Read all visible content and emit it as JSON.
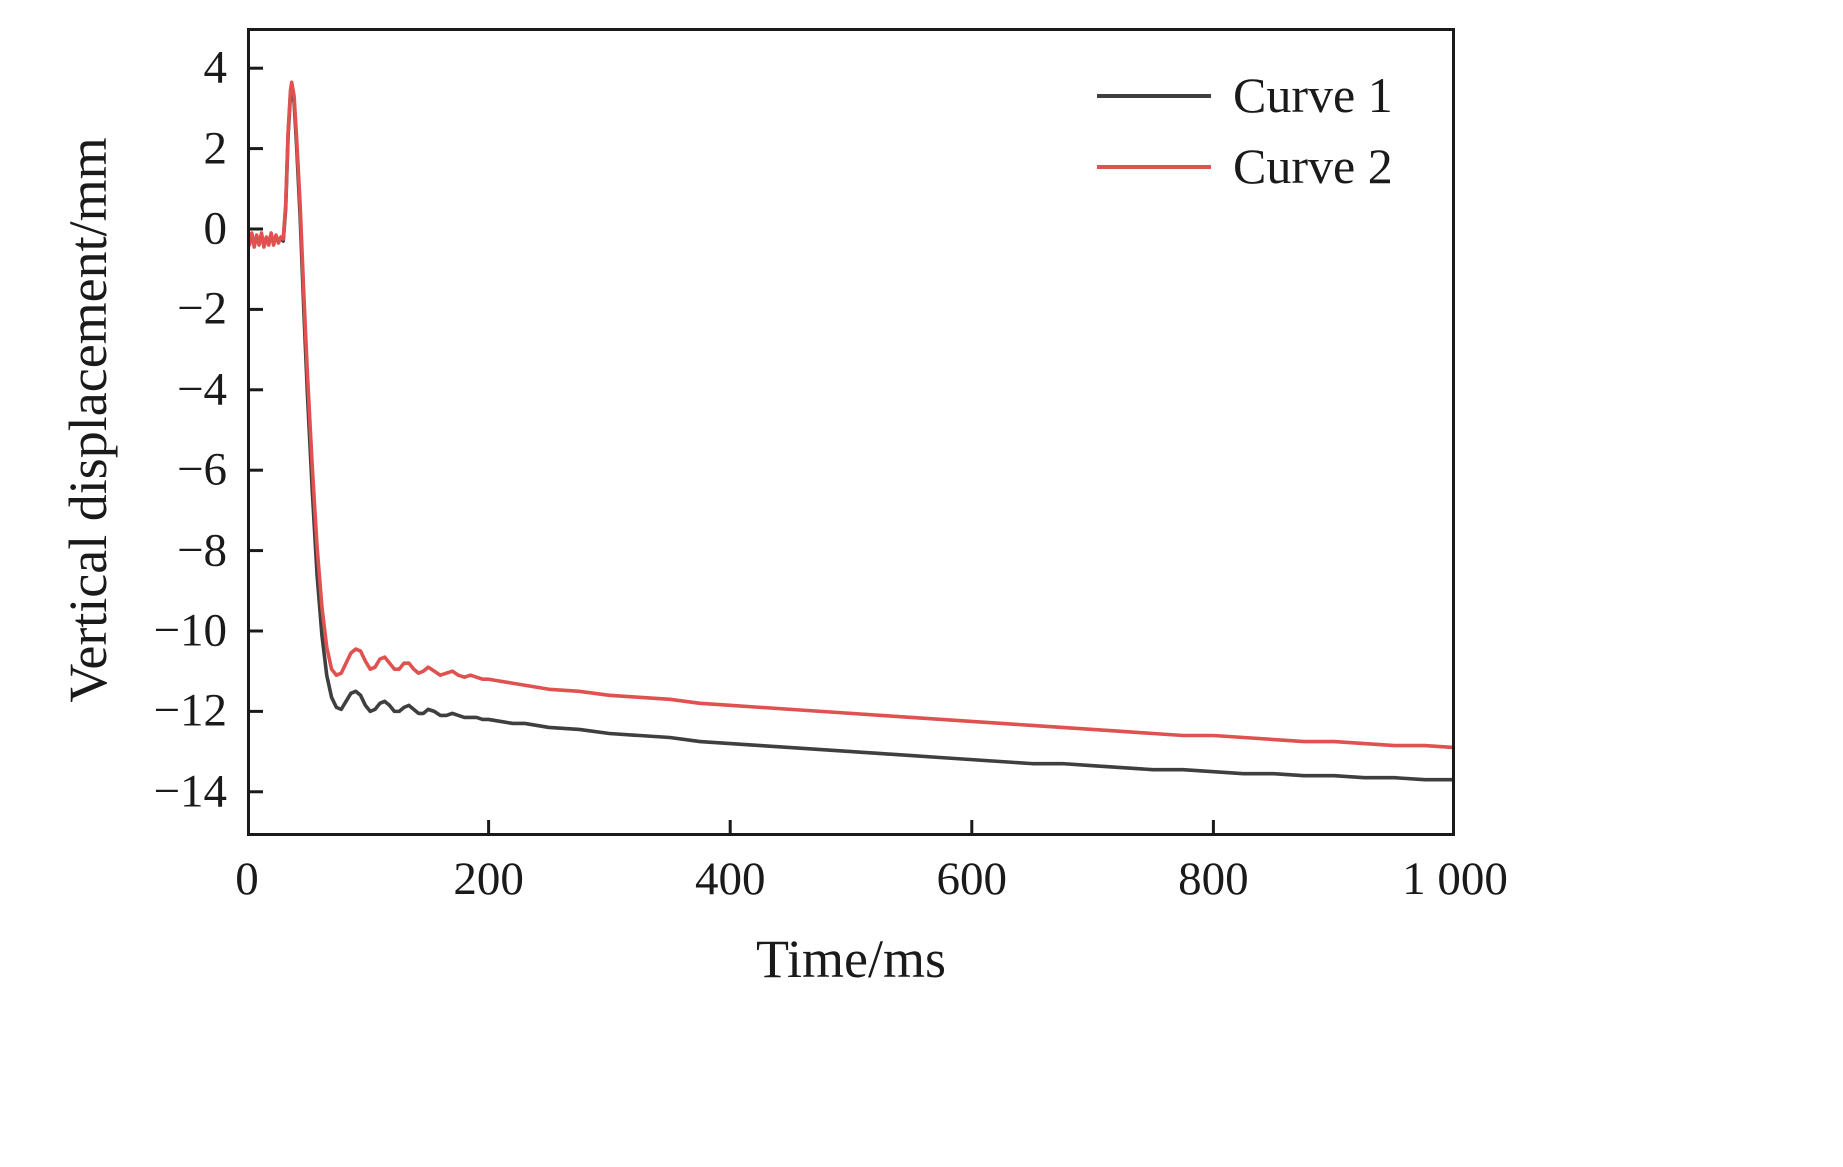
{
  "chart_data": {
    "type": "line",
    "title": "",
    "xlabel": "Time/ms",
    "ylabel": "Vertical displacement/mm",
    "xlim": [
      0,
      1000
    ],
    "ylim": [
      -15.1,
      5.0
    ],
    "grid": false,
    "legend_position": "top-right",
    "frame_color": "#1a1a1a",
    "x_ticks": [
      {
        "value": 0,
        "label": "0"
      },
      {
        "value": 200,
        "label": "200"
      },
      {
        "value": 400,
        "label": "400"
      },
      {
        "value": 600,
        "label": "600"
      },
      {
        "value": 800,
        "label": "800"
      },
      {
        "value": 1000,
        "label": "1 000"
      }
    ],
    "y_ticks": [
      {
        "value": 4,
        "label": "4"
      },
      {
        "value": 2,
        "label": "2"
      },
      {
        "value": 0,
        "label": "0"
      },
      {
        "value": -2,
        "label": "−2"
      },
      {
        "value": -4,
        "label": "−4"
      },
      {
        "value": -6,
        "label": "−6"
      },
      {
        "value": -8,
        "label": "−8"
      },
      {
        "value": -10,
        "label": "−10"
      },
      {
        "value": -12,
        "label": "−12"
      },
      {
        "value": -14,
        "label": "−14"
      }
    ],
    "series": [
      {
        "name": "Curve 1",
        "color": "#3f3f3f",
        "points": [
          [
            0,
            -0.2
          ],
          [
            2,
            -0.35
          ],
          [
            4,
            -0.15
          ],
          [
            6,
            -0.4
          ],
          [
            8,
            -0.2
          ],
          [
            10,
            -0.35
          ],
          [
            12,
            -0.15
          ],
          [
            14,
            -0.4
          ],
          [
            16,
            -0.25
          ],
          [
            18,
            -0.35
          ],
          [
            20,
            -0.15
          ],
          [
            22,
            -0.35
          ],
          [
            24,
            -0.2
          ],
          [
            26,
            -0.3
          ],
          [
            28,
            -0.25
          ],
          [
            30,
            -0.3
          ],
          [
            32,
            0.5
          ],
          [
            34,
            2.3
          ],
          [
            36,
            3.35
          ],
          [
            37,
            3.5
          ],
          [
            39,
            3.15
          ],
          [
            41,
            2.1
          ],
          [
            44,
            0.3
          ],
          [
            47,
            -2.0
          ],
          [
            50,
            -4.1
          ],
          [
            54,
            -6.5
          ],
          [
            58,
            -8.6
          ],
          [
            62,
            -10.1
          ],
          [
            66,
            -11.1
          ],
          [
            70,
            -11.65
          ],
          [
            74,
            -11.9
          ],
          [
            78,
            -11.95
          ],
          [
            82,
            -11.75
          ],
          [
            86,
            -11.55
          ],
          [
            90,
            -11.5
          ],
          [
            94,
            -11.6
          ],
          [
            98,
            -11.85
          ],
          [
            102,
            -12.0
          ],
          [
            106,
            -11.95
          ],
          [
            110,
            -11.8
          ],
          [
            114,
            -11.75
          ],
          [
            118,
            -11.85
          ],
          [
            122,
            -12.0
          ],
          [
            126,
            -12.0
          ],
          [
            130,
            -11.9
          ],
          [
            134,
            -11.85
          ],
          [
            138,
            -11.95
          ],
          [
            142,
            -12.05
          ],
          [
            146,
            -12.05
          ],
          [
            150,
            -11.95
          ],
          [
            155,
            -12.0
          ],
          [
            160,
            -12.1
          ],
          [
            165,
            -12.1
          ],
          [
            170,
            -12.05
          ],
          [
            175,
            -12.1
          ],
          [
            180,
            -12.15
          ],
          [
            185,
            -12.15
          ],
          [
            190,
            -12.15
          ],
          [
            195,
            -12.2
          ],
          [
            200,
            -12.2
          ],
          [
            210,
            -12.25
          ],
          [
            220,
            -12.3
          ],
          [
            230,
            -12.3
          ],
          [
            240,
            -12.35
          ],
          [
            250,
            -12.4
          ],
          [
            275,
            -12.45
          ],
          [
            300,
            -12.55
          ],
          [
            325,
            -12.6
          ],
          [
            350,
            -12.65
          ],
          [
            375,
            -12.75
          ],
          [
            400,
            -12.8
          ],
          [
            425,
            -12.85
          ],
          [
            450,
            -12.9
          ],
          [
            475,
            -12.95
          ],
          [
            500,
            -13.0
          ],
          [
            525,
            -13.05
          ],
          [
            550,
            -13.1
          ],
          [
            575,
            -13.15
          ],
          [
            600,
            -13.2
          ],
          [
            625,
            -13.25
          ],
          [
            650,
            -13.3
          ],
          [
            675,
            -13.3
          ],
          [
            700,
            -13.35
          ],
          [
            725,
            -13.4
          ],
          [
            750,
            -13.45
          ],
          [
            775,
            -13.45
          ],
          [
            800,
            -13.5
          ],
          [
            825,
            -13.55
          ],
          [
            850,
            -13.55
          ],
          [
            875,
            -13.6
          ],
          [
            900,
            -13.6
          ],
          [
            925,
            -13.65
          ],
          [
            950,
            -13.65
          ],
          [
            975,
            -13.7
          ],
          [
            1000,
            -13.7
          ]
        ]
      },
      {
        "name": "Curve 2",
        "color": "#e0524f",
        "points": [
          [
            0,
            -0.15
          ],
          [
            2,
            -0.4
          ],
          [
            4,
            -0.1
          ],
          [
            6,
            -0.45
          ],
          [
            8,
            -0.15
          ],
          [
            10,
            -0.4
          ],
          [
            12,
            -0.1
          ],
          [
            14,
            -0.45
          ],
          [
            16,
            -0.2
          ],
          [
            18,
            -0.4
          ],
          [
            20,
            -0.1
          ],
          [
            22,
            -0.4
          ],
          [
            24,
            -0.15
          ],
          [
            26,
            -0.35
          ],
          [
            28,
            -0.2
          ],
          [
            30,
            -0.25
          ],
          [
            32,
            0.6
          ],
          [
            34,
            2.4
          ],
          [
            36,
            3.45
          ],
          [
            37,
            3.65
          ],
          [
            39,
            3.3
          ],
          [
            41,
            2.3
          ],
          [
            44,
            0.6
          ],
          [
            47,
            -1.6
          ],
          [
            50,
            -3.6
          ],
          [
            54,
            -5.9
          ],
          [
            58,
            -7.9
          ],
          [
            62,
            -9.4
          ],
          [
            66,
            -10.4
          ],
          [
            70,
            -10.95
          ],
          [
            74,
            -11.1
          ],
          [
            78,
            -11.05
          ],
          [
            82,
            -10.8
          ],
          [
            86,
            -10.55
          ],
          [
            90,
            -10.45
          ],
          [
            94,
            -10.5
          ],
          [
            98,
            -10.75
          ],
          [
            102,
            -10.95
          ],
          [
            106,
            -10.9
          ],
          [
            110,
            -10.7
          ],
          [
            114,
            -10.65
          ],
          [
            118,
            -10.8
          ],
          [
            122,
            -10.95
          ],
          [
            126,
            -10.95
          ],
          [
            130,
            -10.8
          ],
          [
            134,
            -10.8
          ],
          [
            138,
            -10.95
          ],
          [
            142,
            -11.05
          ],
          [
            146,
            -11.0
          ],
          [
            150,
            -10.9
          ],
          [
            155,
            -11.0
          ],
          [
            160,
            -11.1
          ],
          [
            165,
            -11.05
          ],
          [
            170,
            -11.0
          ],
          [
            175,
            -11.1
          ],
          [
            180,
            -11.15
          ],
          [
            185,
            -11.1
          ],
          [
            190,
            -11.15
          ],
          [
            195,
            -11.2
          ],
          [
            200,
            -11.2
          ],
          [
            210,
            -11.25
          ],
          [
            220,
            -11.3
          ],
          [
            230,
            -11.35
          ],
          [
            240,
            -11.4
          ],
          [
            250,
            -11.45
          ],
          [
            275,
            -11.5
          ],
          [
            300,
            -11.6
          ],
          [
            325,
            -11.65
          ],
          [
            350,
            -11.7
          ],
          [
            375,
            -11.8
          ],
          [
            400,
            -11.85
          ],
          [
            425,
            -11.9
          ],
          [
            450,
            -11.95
          ],
          [
            475,
            -12.0
          ],
          [
            500,
            -12.05
          ],
          [
            525,
            -12.1
          ],
          [
            550,
            -12.15
          ],
          [
            575,
            -12.2
          ],
          [
            600,
            -12.25
          ],
          [
            625,
            -12.3
          ],
          [
            650,
            -12.35
          ],
          [
            675,
            -12.4
          ],
          [
            700,
            -12.45
          ],
          [
            725,
            -12.5
          ],
          [
            750,
            -12.55
          ],
          [
            775,
            -12.6
          ],
          [
            800,
            -12.6
          ],
          [
            825,
            -12.65
          ],
          [
            850,
            -12.7
          ],
          [
            875,
            -12.75
          ],
          [
            900,
            -12.75
          ],
          [
            925,
            -12.8
          ],
          [
            950,
            -12.85
          ],
          [
            975,
            -12.85
          ],
          [
            1000,
            -12.9
          ]
        ]
      }
    ]
  }
}
